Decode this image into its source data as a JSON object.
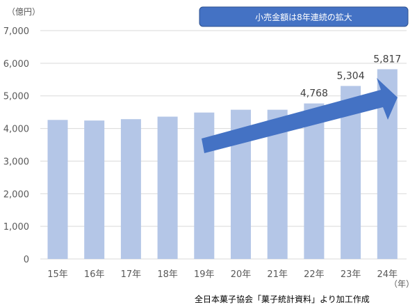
{
  "chart_data": {
    "type": "bar",
    "categories": [
      "15年",
      "16年",
      "17年",
      "18年",
      "19年",
      "20年",
      "21年",
      "22年",
      "23年",
      "24年"
    ],
    "values": [
      4262,
      4244,
      4286,
      4363,
      4489,
      4575,
      4575,
      4768,
      5304,
      5817
    ],
    "data_labels": [
      {
        "index": 7,
        "text": "4,768"
      },
      {
        "index": 8,
        "text": "5,304"
      },
      {
        "index": 9,
        "text": "5,817"
      }
    ],
    "y_ticks": [
      "0",
      "1,000",
      "2,000",
      "3,000",
      "4,000",
      "5,000",
      "6,000",
      "7,000"
    ],
    "ylim": [
      0,
      7000
    ],
    "ylabel": "（億円）",
    "xlabel": "（年）",
    "grid": true,
    "annotation": "小売金額は8年連続の拡大",
    "source": "全日本菓子協会「菓子統計資料」より加工作成",
    "colors": {
      "bar": "#b4c6e7",
      "grid": "#d9d9d9",
      "arrow": "#4472c4",
      "badge_fill": "#4472c4",
      "badge_stroke": "#2f528f"
    }
  }
}
